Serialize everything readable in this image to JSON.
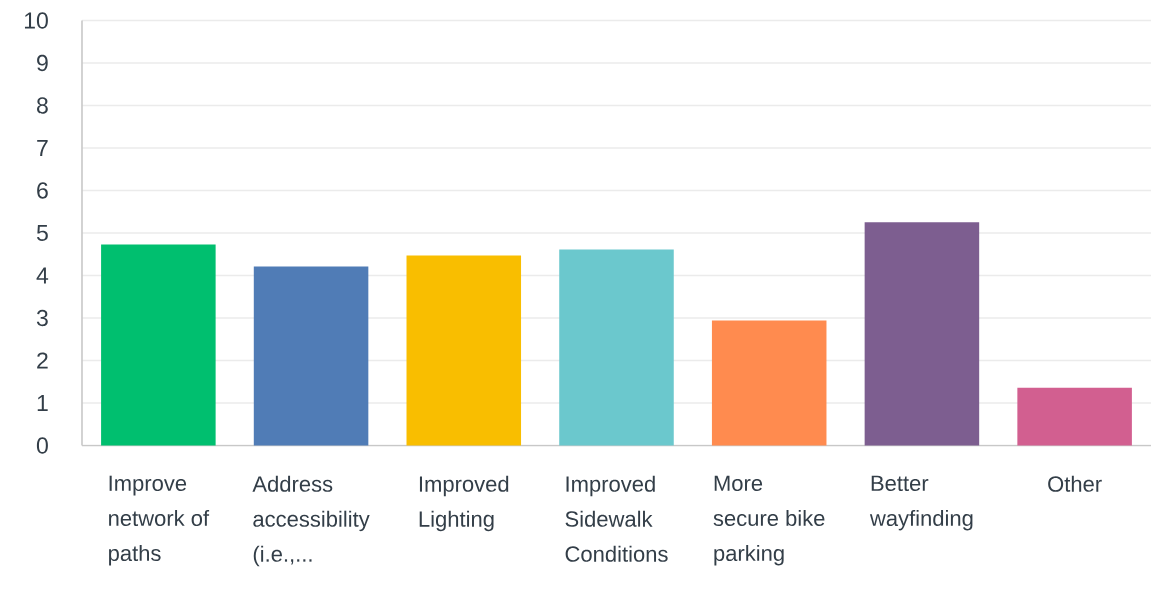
{
  "chart_data": {
    "type": "bar",
    "categories": [
      "Improve network of paths",
      "Address accessibility (i.e.,...",
      "Improved Lighting",
      "Improved Sidewalk Conditions",
      "More secure bike parking",
      "Better wayfinding",
      "Other"
    ],
    "values": [
      4.73,
      4.21,
      4.47,
      4.61,
      2.94,
      5.25,
      1.36
    ],
    "colors": [
      "#00bf6f",
      "#507cb6",
      "#f9be00",
      "#6bc8cd",
      "#ff8b4f",
      "#7d5e90",
      "#d25f90"
    ],
    "ylim": [
      0,
      10
    ],
    "yticks": [
      0,
      1,
      2,
      3,
      4,
      5,
      6,
      7,
      8,
      9,
      10
    ],
    "grid": "y"
  }
}
